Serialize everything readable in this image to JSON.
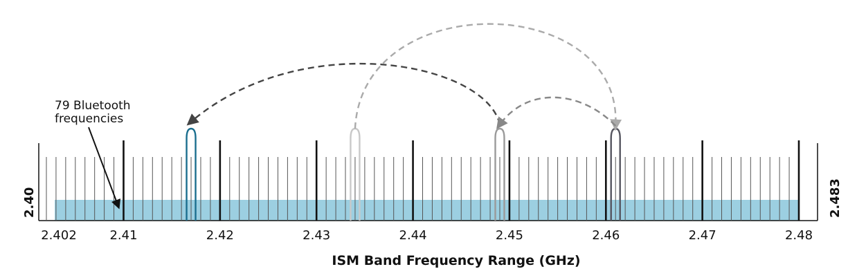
{
  "diagram": {
    "callout_lines": [
      "79 Bluetooth",
      "frequencies"
    ],
    "band_start_label": "2.40",
    "band_end_label": "2.483",
    "axis_title": "ISM Band Frequency Range (GHz)",
    "tick_labels": [
      "2.402",
      "2.41",
      "2.42",
      "2.43",
      "2.44",
      "2.45",
      "2.46",
      "2.47",
      "2.48"
    ],
    "channel_count": 79,
    "channel_range_ghz": [
      2.402,
      2.48
    ],
    "band_range_ghz": [
      2.4,
      2.483
    ],
    "hops": [
      {
        "channel_ghz": 2.417,
        "color": "#1a6e8e"
      },
      {
        "channel_ghz": 2.434,
        "color": "#c8c8c8"
      },
      {
        "channel_ghz": 2.449,
        "color": "#9a9a9a"
      },
      {
        "channel_ghz": 2.461,
        "color": "#55555f"
      }
    ],
    "hop_arrows": [
      {
        "from_ghz": 2.449,
        "to_ghz": 2.417,
        "color": "#444444"
      },
      {
        "from_ghz": 2.434,
        "to_ghz": 2.461,
        "color": "#aaaaaa"
      },
      {
        "from_ghz": 2.461,
        "to_ghz": 2.449,
        "color": "#888888"
      }
    ],
    "colors": {
      "band_fill": "#9ccfe1",
      "tick": "#111111",
      "thin_tick": "#555555"
    }
  }
}
